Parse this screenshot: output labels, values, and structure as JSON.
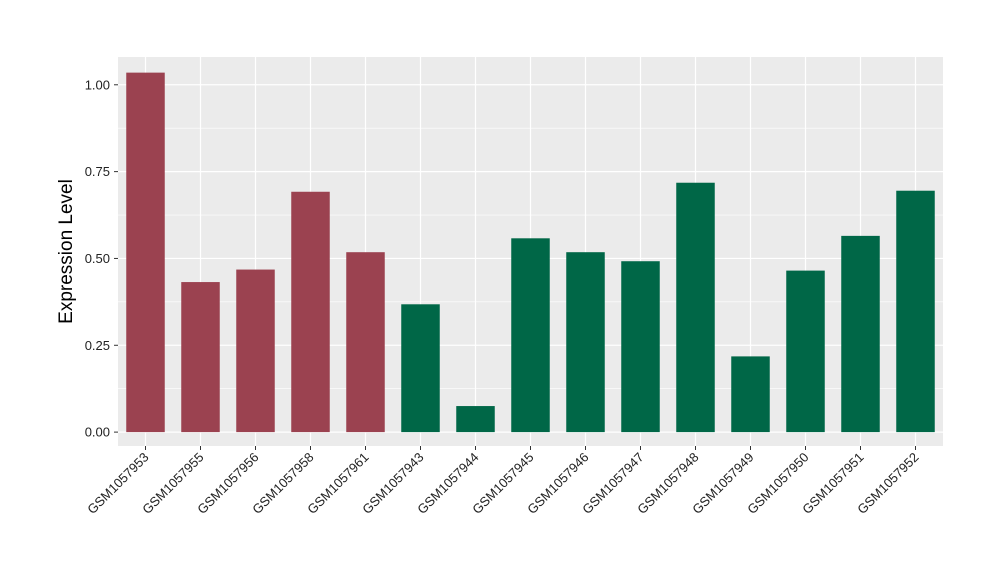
{
  "chart_data": {
    "type": "bar",
    "title": "",
    "xlabel": "",
    "ylabel": "Expression Level",
    "ylim": [
      -0.04,
      1.08
    ],
    "yticks": [
      "0.00",
      "0.25",
      "0.50",
      "0.75",
      "1.00"
    ],
    "ytick_values": [
      0,
      0.25,
      0.5,
      0.75,
      1.0
    ],
    "grid": true,
    "panel_color": "#ebebeb",
    "grid_color": "#ffffff",
    "categories": [
      "GSM1057953",
      "GSM1057955",
      "GSM1057956",
      "GSM1057958",
      "GSM1057961",
      "GSM1057943",
      "GSM1057944",
      "GSM1057945",
      "GSM1057946",
      "GSM1057947",
      "GSM1057948",
      "GSM1057949",
      "GSM1057950",
      "GSM1057951",
      "GSM1057952"
    ],
    "values": [
      1.035,
      0.432,
      0.468,
      0.692,
      0.518,
      0.368,
      0.075,
      0.558,
      0.518,
      0.492,
      0.718,
      0.218,
      0.465,
      0.565,
      0.695
    ],
    "bar_colors": [
      "#9b4250",
      "#9b4250",
      "#9b4250",
      "#9b4250",
      "#9b4250",
      "#006747",
      "#006747",
      "#006747",
      "#006747",
      "#006747",
      "#006747",
      "#006747",
      "#006747",
      "#006747",
      "#006747"
    ]
  }
}
